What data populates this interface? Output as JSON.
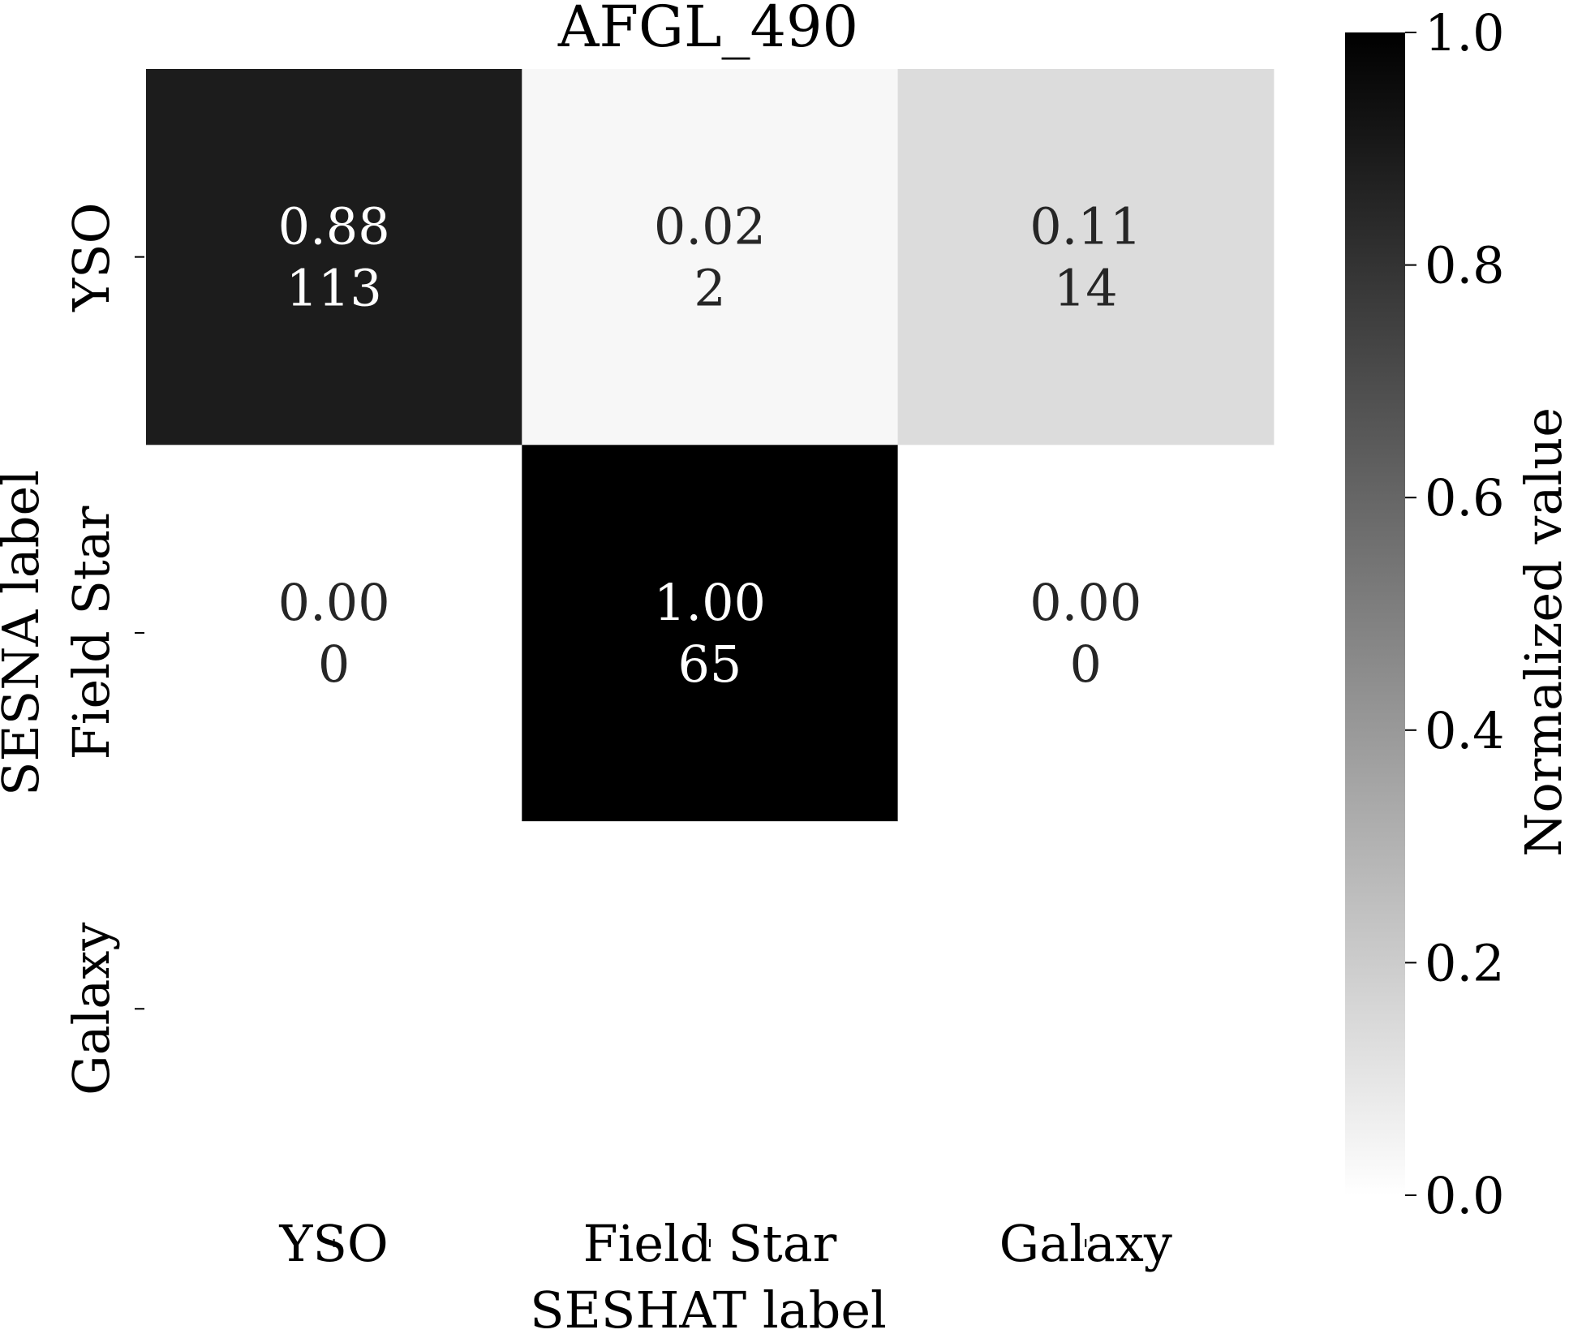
{
  "chart_data": {
    "type": "heatmap",
    "title": "AFGL_490",
    "xlabel": "SESHAT label",
    "ylabel": "SESNA label",
    "x_categories": [
      "YSO",
      "Field Star",
      "Galaxy"
    ],
    "y_categories": [
      "YSO",
      "Field Star",
      "Galaxy"
    ],
    "cells": [
      {
        "row": 0,
        "col": 0,
        "value": 0.88,
        "value_label": "0.88",
        "count": "113"
      },
      {
        "row": 0,
        "col": 1,
        "value": 0.02,
        "value_label": "0.02",
        "count": "2"
      },
      {
        "row": 0,
        "col": 2,
        "value": 0.11,
        "value_label": "0.11",
        "count": "14"
      },
      {
        "row": 1,
        "col": 0,
        "value": 0.0,
        "value_label": "0.00",
        "count": "0"
      },
      {
        "row": 1,
        "col": 1,
        "value": 1.0,
        "value_label": "1.00",
        "count": "65"
      },
      {
        "row": 1,
        "col": 2,
        "value": 0.0,
        "value_label": "0.00",
        "count": "0"
      }
    ],
    "colorbar": {
      "label": "Normalized value",
      "range": [
        0.0,
        1.0
      ],
      "ticks": [
        {
          "value": 0.0,
          "label": "0.0"
        },
        {
          "value": 0.2,
          "label": "0.2"
        },
        {
          "value": 0.4,
          "label": "0.4"
        },
        {
          "value": 0.6,
          "label": "0.6"
        },
        {
          "value": 0.8,
          "label": "0.8"
        },
        {
          "value": 1.0,
          "label": "1.0"
        }
      ],
      "colormap": "Greys",
      "color_low": "#ffffff",
      "color_high": "#000000"
    },
    "grid": false
  }
}
